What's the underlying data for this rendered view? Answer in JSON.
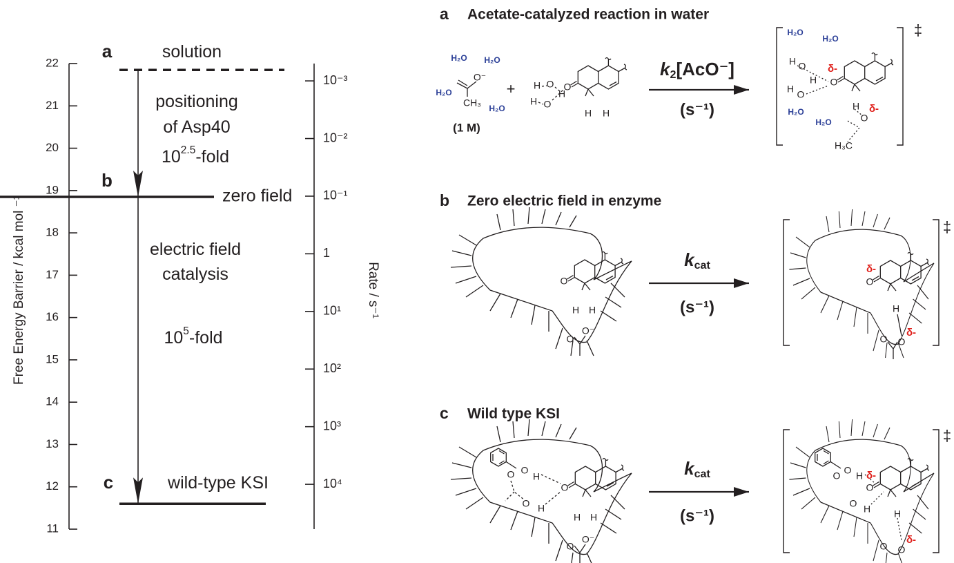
{
  "chart_data": {
    "type": "energy-levels",
    "ylabel": "Free Energy Barrier / kcal mol ⁻¹",
    "ylim": [
      11,
      22
    ],
    "yticks": [
      11,
      12,
      13,
      14,
      15,
      16,
      17,
      18,
      19,
      20,
      21,
      22
    ],
    "y2label": "Rate / s⁻¹",
    "y2lim": [
      60000,
      0.0005
    ],
    "y2scale": "log",
    "y2ticks": [
      {
        "value": 0.001,
        "label": "10⁻³"
      },
      {
        "value": 0.01,
        "label": "10⁻²"
      },
      {
        "value": 0.1,
        "label": "10⁻¹"
      },
      1,
      {
        "value": 10,
        "label": "10¹"
      },
      {
        "value": 100,
        "label": "10²"
      },
      {
        "value": 1000,
        "label": "10³"
      },
      {
        "value": 10000,
        "label": "10⁴"
      }
    ],
    "levels": [
      {
        "letter": "a",
        "name": "solution",
        "value": 21.85,
        "style": "dashed"
      },
      {
        "letter": "b",
        "name": "zero field",
        "value": 18.85,
        "style": "solid"
      },
      {
        "letter": "c",
        "name": "wild-type KSI",
        "value": 11.6,
        "style": "solid"
      }
    ],
    "annotations": [
      {
        "text": "positioning"
      },
      {
        "text": "of Asp40"
      },
      {
        "base": "10",
        "sup": "2.5",
        "after": "-fold"
      },
      {
        "text": "electric field"
      },
      {
        "text": "catalysis"
      },
      {
        "base": "10",
        "sup": "5",
        "after": "-fold"
      }
    ]
  },
  "panels": [
    {
      "letter": "a",
      "title": "Acetate-catalyzed reaction in water",
      "reactant": [
        "H₂O",
        "H₂O",
        "H₂O",
        "H₂O",
        "O⁻",
        "CH₃",
        "(1 M)",
        "+",
        "H",
        "O",
        "H",
        "H",
        "O",
        "O",
        "H",
        "H"
      ],
      "rate": {
        "base": "k",
        "sub": "2",
        "after": "[AcO⁻]"
      },
      "units": "(s⁻¹)",
      "ts": [
        "H₂O",
        "H₂O",
        "H₂O",
        "H₂O",
        "H",
        "O",
        "H",
        "H",
        "O",
        "δ-",
        "O",
        "H",
        "δ-",
        "O",
        "H₃C"
      ],
      "dagger": "‡"
    },
    {
      "letter": "b",
      "title": "Zero electric field in enzyme",
      "reactant": [
        "O",
        "H",
        "H",
        "O",
        "O⁻"
      ],
      "rate": {
        "base": "k",
        "sub": "cat"
      },
      "units": "(s⁻¹)",
      "ts": [
        "δ-",
        "O",
        "H",
        "δ-",
        "O",
        "O"
      ],
      "dagger": "‡"
    },
    {
      "letter": "c",
      "title": "Wild type KSI",
      "reactant": [
        "O",
        "H",
        "O",
        "H",
        "H",
        "O",
        "O",
        "H",
        "O",
        "O⁻"
      ],
      "rate": {
        "base": "k",
        "sub": "cat"
      },
      "units": "(s⁻¹)",
      "ts": [
        "O",
        "H",
        "δ-",
        "O",
        "O",
        "O",
        "H",
        "H",
        "δ-",
        "O",
        "O"
      ],
      "dagger": "‡"
    }
  ]
}
